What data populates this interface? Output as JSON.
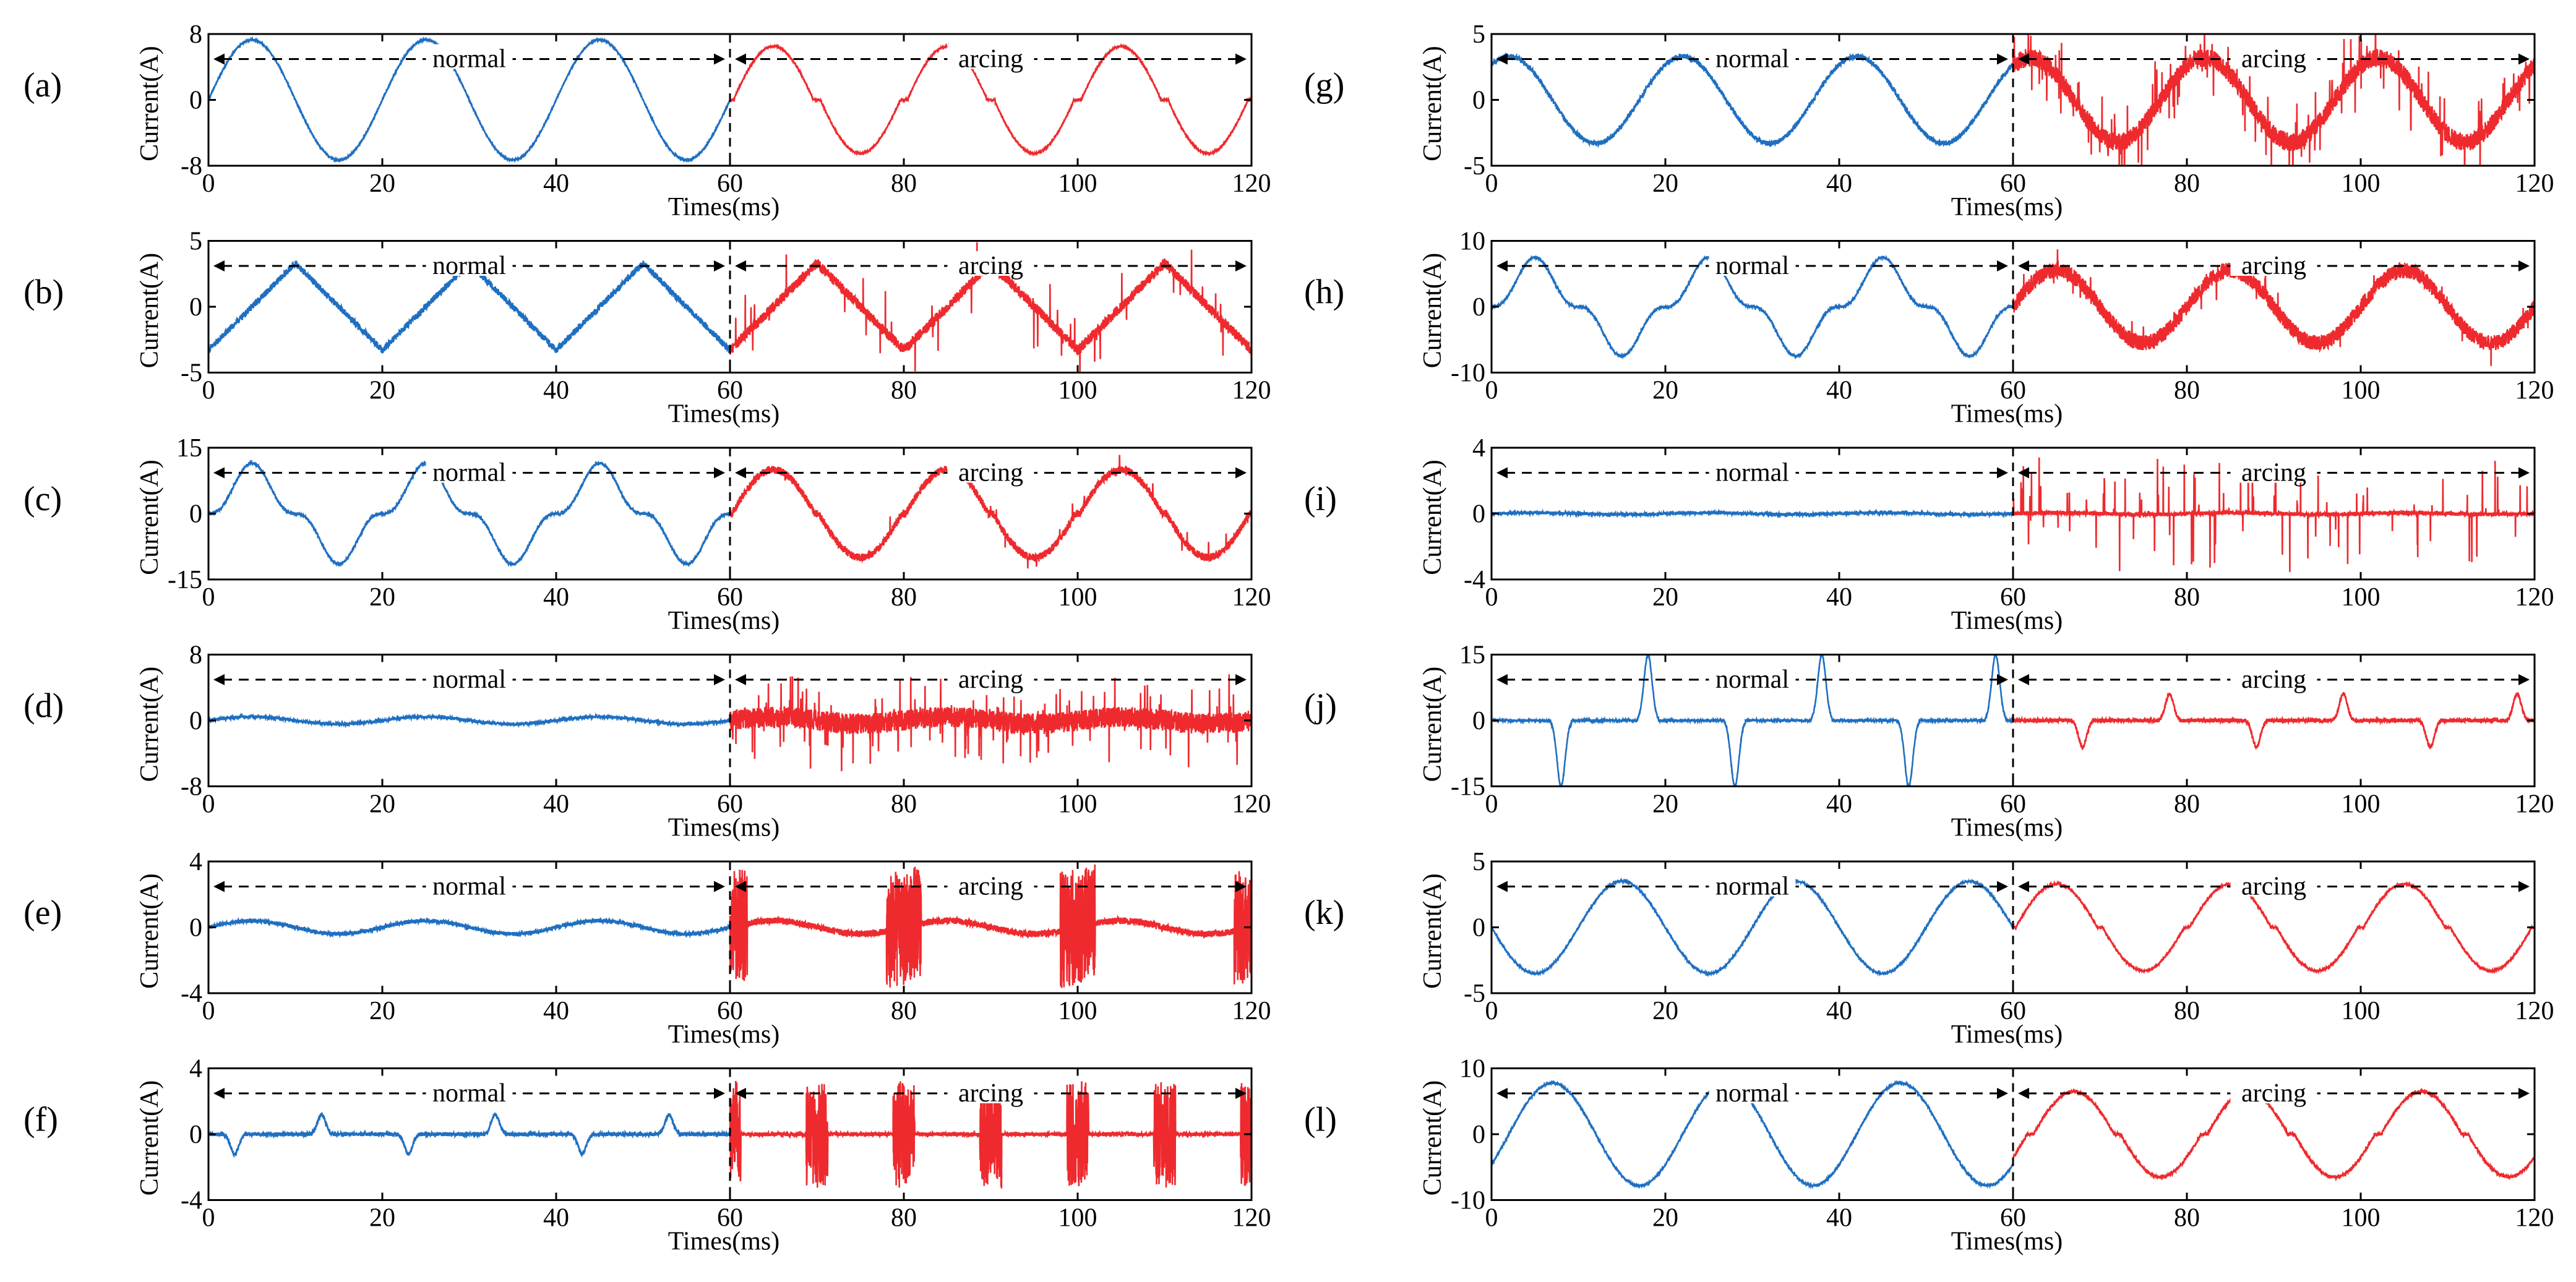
{
  "chart_data": [
    {
      "label": "(a)",
      "type": "line",
      "ylim": [
        -8,
        8
      ],
      "ytick_labels": [
        "-8",
        "0",
        "8"
      ],
      "xlim": [
        0,
        120
      ],
      "xtick_labels": [
        "0",
        "20",
        "40",
        "60",
        "80",
        "100",
        "120"
      ],
      "xlabel": "Times(ms)",
      "ylabel": "Current(A)",
      "split_x": 60,
      "regions": [
        {
          "name": "normal",
          "color": "#1f6fc0"
        },
        {
          "name": "arcing",
          "color": "#ee2a2e"
        }
      ],
      "signal": {
        "normal": {
          "kind": "sine",
          "amplitude": 7.3,
          "period_ms": 20,
          "phase_ms": 0,
          "noise": 0.05
        },
        "arcing": {
          "kind": "shoulder-sine",
          "amplitude": 6.5,
          "period_ms": 20,
          "flat_zone": 0.9,
          "noise": 0.05
        }
      }
    },
    {
      "label": "(b)",
      "type": "line",
      "ylim": [
        -5,
        5
      ],
      "ytick_labels": [
        "-5",
        "0",
        "5"
      ],
      "xlim": [
        0,
        120
      ],
      "xtick_labels": [
        "0",
        "20",
        "40",
        "60",
        "80",
        "100",
        "120"
      ],
      "xlabel": "Times(ms)",
      "ylabel": "Current(A)",
      "split_x": 60,
      "regions": [
        {
          "name": "normal",
          "color": "#1f6fc0"
        },
        {
          "name": "arcing",
          "color": "#ee2a2e"
        }
      ],
      "signal": {
        "normal": {
          "kind": "triangle",
          "amplitude": 3.3,
          "period_ms": 20,
          "noise": 0.25
        },
        "arcing": {
          "kind": "triangle",
          "amplitude": 3.3,
          "period_ms": 20,
          "noise": 0.4,
          "spikes": 60,
          "spike_amp": 3
        }
      }
    },
    {
      "label": "(c)",
      "type": "line",
      "ylim": [
        -15,
        15
      ],
      "ytick_labels": [
        "-15",
        "0",
        "15"
      ],
      "xlim": [
        0,
        120
      ],
      "xtick_labels": [
        "0",
        "20",
        "40",
        "60",
        "80",
        "100",
        "120"
      ],
      "xlabel": "Times(ms)",
      "ylabel": "Current(A)",
      "split_x": 60,
      "regions": [
        {
          "name": "normal",
          "color": "#1f6fc0"
        },
        {
          "name": "arcing",
          "color": "#ee2a2e"
        }
      ],
      "signal": {
        "normal": {
          "kind": "peaky-sine",
          "amplitude": 11.5,
          "period_ms": 20,
          "noise": 0.1
        },
        "arcing": {
          "kind": "shoulder-sine",
          "amplitude": 10,
          "period_ms": 20,
          "flat_zone": 0.5,
          "noise": 0.3,
          "spikes": 14,
          "spike_amp": 4
        }
      }
    },
    {
      "label": "(d)",
      "type": "line",
      "ylim": [
        -8,
        8
      ],
      "ytick_labels": [
        "-8",
        "0",
        "8"
      ],
      "xlim": [
        0,
        120
      ],
      "xtick_labels": [
        "0",
        "20",
        "40",
        "60",
        "80",
        "100",
        "120"
      ],
      "xlabel": "Times(ms)",
      "ylabel": "Current(A)",
      "split_x": 60,
      "regions": [
        {
          "name": "normal",
          "color": "#1f6fc0"
        },
        {
          "name": "arcing",
          "color": "#ee2a2e"
        }
      ],
      "signal": {
        "normal": {
          "kind": "sine",
          "amplitude": 0.45,
          "period_ms": 20,
          "noise": 0.12
        },
        "arcing": {
          "kind": "sine",
          "amplitude": 0.4,
          "period_ms": 20,
          "noise": 0.8,
          "spikes": 160,
          "spike_amp": 5
        }
      }
    },
    {
      "label": "(e)",
      "type": "line",
      "ylim": [
        -4,
        4
      ],
      "ytick_labels": [
        "-4",
        "0",
        "4"
      ],
      "xlim": [
        0,
        120
      ],
      "xtick_labels": [
        "0",
        "20",
        "40",
        "60",
        "80",
        "100",
        "120"
      ],
      "xlabel": "Times(ms)",
      "ylabel": "Current(A)",
      "split_x": 60,
      "regions": [
        {
          "name": "normal",
          "color": "#1f6fc0"
        },
        {
          "name": "arcing",
          "color": "#ee2a2e"
        }
      ],
      "signal": {
        "normal": {
          "kind": "sine",
          "amplitude": 0.4,
          "period_ms": 20,
          "noise": 0.15
        },
        "arcing": {
          "kind": "bursts",
          "amplitude": 0.4,
          "period_ms": 20,
          "noise": 0.25,
          "burst_amp": 3.5,
          "burst_width_ms": 4
        }
      }
    },
    {
      "label": "(f)",
      "type": "line",
      "ylim": [
        -4,
        4
      ],
      "ytick_labels": [
        "-4",
        "0",
        "4"
      ],
      "xlim": [
        0,
        120
      ],
      "xtick_labels": [
        "0",
        "20",
        "40",
        "60",
        "80",
        "100",
        "120"
      ],
      "xlabel": "Times(ms)",
      "ylabel": "Current(A)",
      "split_x": 60,
      "regions": [
        {
          "name": "normal",
          "color": "#1f6fc0"
        },
        {
          "name": "arcing",
          "color": "#ee2a2e"
        }
      ],
      "signal": {
        "normal": {
          "kind": "pulses",
          "pulse_amp": 1.2,
          "period_ms": 20,
          "pulse_width_ms": 1.2,
          "noise": 0.15
        },
        "arcing": {
          "kind": "bursts",
          "amplitude": 0,
          "period_ms": 10,
          "noise": 0.15,
          "burst_amp": 3.2,
          "burst_width_ms": 2.5
        }
      }
    },
    {
      "label": "(g)",
      "type": "line",
      "ylim": [
        -5,
        5
      ],
      "ytick_labels": [
        "-5",
        "0",
        "5"
      ],
      "xlim": [
        0,
        120
      ],
      "xtick_labels": [
        "0",
        "20",
        "40",
        "60",
        "80",
        "100",
        "120"
      ],
      "xlabel": "Times(ms)",
      "ylabel": "Current(A)",
      "split_x": 60,
      "regions": [
        {
          "name": "normal",
          "color": "#1f6fc0"
        },
        {
          "name": "arcing",
          "color": "#ee2a2e"
        }
      ],
      "signal": {
        "normal": {
          "kind": "sine",
          "amplitude": 3.3,
          "period_ms": 20,
          "phase_ms": -3,
          "noise": 0.18
        },
        "arcing": {
          "kind": "sine",
          "amplitude": 3.2,
          "period_ms": 20,
          "phase_ms": -3,
          "noise": 0.7,
          "spikes": 170,
          "spike_amp": 3
        }
      }
    },
    {
      "label": "(h)",
      "type": "line",
      "ylim": [
        -10,
        10
      ],
      "ytick_labels": [
        "-10",
        "0",
        "10"
      ],
      "xlim": [
        0,
        120
      ],
      "xtick_labels": [
        "0",
        "20",
        "40",
        "60",
        "80",
        "100",
        "120"
      ],
      "xlabel": "Times(ms)",
      "ylabel": "Current(A)",
      "split_x": 60,
      "regions": [
        {
          "name": "normal",
          "color": "#1f6fc0"
        },
        {
          "name": "arcing",
          "color": "#ee2a2e"
        }
      ],
      "signal": {
        "normal": {
          "kind": "peaky-sine",
          "amplitude": 7.5,
          "period_ms": 20,
          "noise": 0.1
        },
        "arcing": {
          "kind": "sine",
          "amplitude": 5.5,
          "period_ms": 20,
          "noise": 0.6,
          "spikes": 40,
          "spike_amp": 3
        }
      }
    },
    {
      "label": "(i)",
      "type": "line",
      "ylim": [
        -4,
        4
      ],
      "ytick_labels": [
        "-4",
        "0",
        "4"
      ],
      "xlim": [
        0,
        120
      ],
      "xtick_labels": [
        "0",
        "20",
        "40",
        "60",
        "80",
        "100",
        "120"
      ],
      "xlabel": "Times(ms)",
      "ylabel": "Current(A)",
      "split_x": 60,
      "regions": [
        {
          "name": "normal",
          "color": "#1f6fc0"
        },
        {
          "name": "arcing",
          "color": "#ee2a2e"
        }
      ],
      "signal": {
        "normal": {
          "kind": "sine",
          "amplitude": 0.05,
          "period_ms": 20,
          "noise": 0.12
        },
        "arcing": {
          "kind": "sine",
          "amplitude": 0.05,
          "period_ms": 20,
          "noise": 0.15,
          "spikes": 90,
          "spike_amp": 3.5
        }
      }
    },
    {
      "label": "(j)",
      "type": "line",
      "ylim": [
        -15,
        15
      ],
      "ytick_labels": [
        "-15",
        "0",
        "15"
      ],
      "xlim": [
        0,
        120
      ],
      "xtick_labels": [
        "0",
        "20",
        "40",
        "60",
        "80",
        "100",
        "120"
      ],
      "xlabel": "Times(ms)",
      "ylabel": "Current(A)",
      "split_x": 60,
      "regions": [
        {
          "name": "normal",
          "color": "#1f6fc0"
        },
        {
          "name": "arcing",
          "color": "#ee2a2e"
        }
      ],
      "signal": {
        "normal": {
          "kind": "pulses",
          "pulse_amp": 15,
          "period_ms": 20,
          "pulse_width_ms": 1.2,
          "first_pulse_ms": 8,
          "noise": 0.1
        },
        "arcing": {
          "kind": "pulses",
          "pulse_amp": 6,
          "period_ms": 20,
          "pulse_width_ms": 1.2,
          "first_pulse_ms": 8,
          "noise": 0.15
        }
      }
    },
    {
      "label": "(k)",
      "type": "line",
      "ylim": [
        -5,
        5
      ],
      "ytick_labels": [
        "-5",
        "0",
        "5"
      ],
      "xlim": [
        0,
        120
      ],
      "xtick_labels": [
        "0",
        "20",
        "40",
        "60",
        "80",
        "100",
        "120"
      ],
      "xlabel": "Times(ms)",
      "ylabel": "Current(A)",
      "split_x": 60,
      "regions": [
        {
          "name": "normal",
          "color": "#1f6fc0"
        },
        {
          "name": "arcing",
          "color": "#ee2a2e"
        }
      ],
      "signal": {
        "normal": {
          "kind": "sine",
          "amplitude": 3.5,
          "period_ms": 20,
          "phase_ms": 10,
          "noise": 0.08
        },
        "arcing": {
          "kind": "shoulder-sine",
          "amplitude": 3.3,
          "period_ms": 20,
          "flat_zone": 0.7,
          "noise": 0.08
        }
      }
    },
    {
      "label": "(l)",
      "type": "line",
      "ylim": [
        -10,
        10
      ],
      "ytick_labels": [
        "-10",
        "0",
        "10"
      ],
      "xlim": [
        0,
        120
      ],
      "xtick_labels": [
        "0",
        "20",
        "40",
        "60",
        "80",
        "100",
        "120"
      ],
      "xlabel": "Times(ms)",
      "ylabel": "Current(A)",
      "split_x": 60,
      "regions": [
        {
          "name": "normal",
          "color": "#1f6fc0"
        },
        {
          "name": "arcing",
          "color": "#ee2a2e"
        }
      ],
      "signal": {
        "normal": {
          "kind": "sine",
          "amplitude": 7.8,
          "period_ms": 20,
          "phase_ms": 2,
          "noise": 0.08
        },
        "arcing": {
          "kind": "shoulder-sine",
          "amplitude": 6.5,
          "period_ms": 20,
          "phase_ms": 2,
          "flat_zone": 0.8,
          "noise": 0.12
        }
      }
    }
  ]
}
